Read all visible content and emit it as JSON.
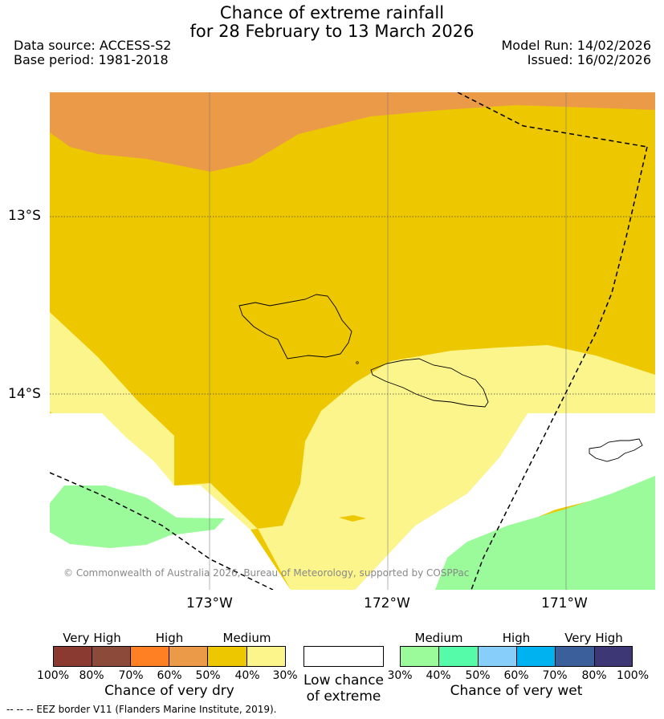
{
  "title": {
    "line1": "Chance of extreme rainfall",
    "line2": "for 28 February to 13 March 2026"
  },
  "meta": {
    "data_source": "Data source: ACCESS-S2",
    "base_period": "Base period: 1981-2018",
    "model_run": "Model Run: 14/02/2026",
    "issued": "Issued: 16/02/2026"
  },
  "map": {
    "lat_labels": [
      "13°S",
      "14°S"
    ],
    "lon_labels": [
      "173°W",
      "172°W",
      "171°W"
    ],
    "copyright": "© Commonwealth of Australia 2026, Bureau of Meteorology, supported by COSPPac",
    "colors": {
      "high_dry": "#EB9B48",
      "medium_dry": "#EDC700",
      "low_medium_dry": "#FCF58C",
      "low_chance": "#FFFFFF",
      "medium_wet": "#9BFB9B"
    }
  },
  "legend": {
    "dry": {
      "headers": [
        "Very High",
        "High",
        "Medium"
      ],
      "colors": [
        "#8B3A32",
        "#8B4A3A",
        "#FF8023",
        "#EB9B48",
        "#EDC700",
        "#FCF58C"
      ],
      "ticks": [
        "100%",
        "80%",
        "70%",
        "60%",
        "50%",
        "40%",
        "30%"
      ],
      "caption": "Chance of very dry"
    },
    "low": {
      "caption_line1": "Low chance",
      "caption_line2": "of extreme",
      "color": "#FFFFFF"
    },
    "wet": {
      "headers": [
        "Medium",
        "High",
        "Very High"
      ],
      "colors": [
        "#9BFB9B",
        "#55FBA8",
        "#87CEFA",
        "#00B3F0",
        "#3A5F9A",
        "#3E3776"
      ],
      "ticks": [
        "30%",
        "40%",
        "50%",
        "60%",
        "70%",
        "80%",
        "100%"
      ],
      "caption": "Chance of very wet"
    }
  },
  "footer": {
    "eez_note": "--  --  -- EEZ border V11 (Flanders Marine Institute, 2019)."
  }
}
